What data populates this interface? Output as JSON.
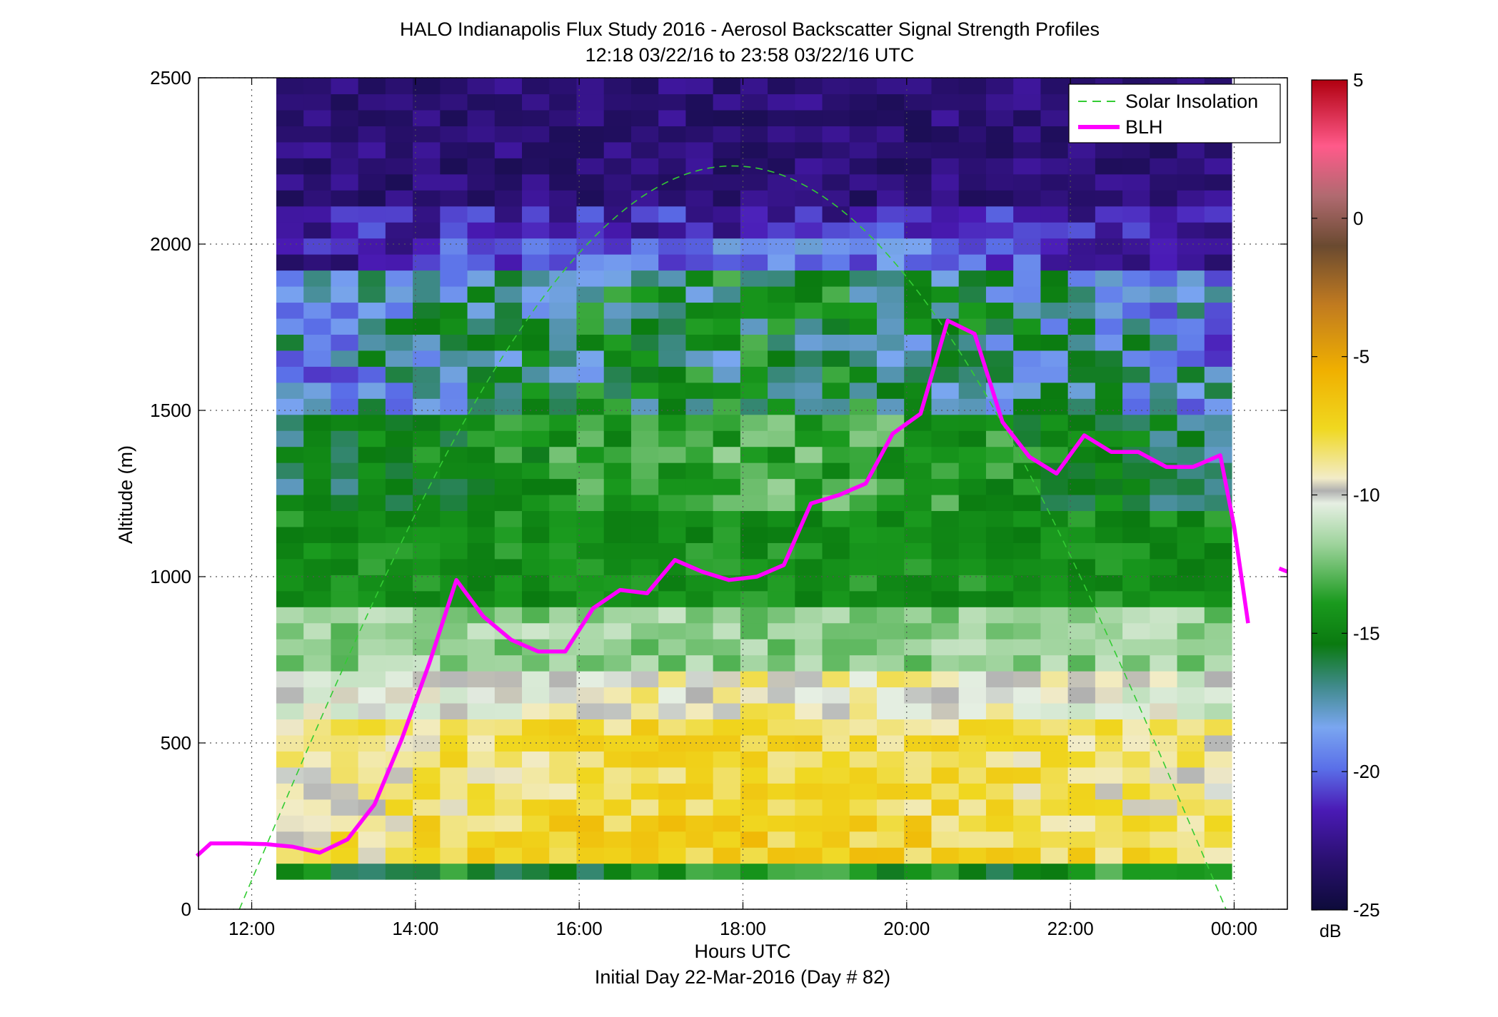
{
  "chart_data": {
    "type": "heatmap",
    "title": "HALO Indianapolis Flux Study 2016 - Aerosol Backscatter Signal Strength Profiles",
    "subtitle": "12:18 03/22/16 to 23:58 03/22/16  UTC",
    "xlabel": "Hours UTC",
    "xlabel2": "Initial Day 22-Mar-2016 (Day # 82)",
    "ylabel": "Altitude (m)",
    "xlim_hours": [
      11.35,
      24.65
    ],
    "ylim": [
      0,
      2500
    ],
    "x_ticks": [
      {
        "value": 12,
        "label": "12:00"
      },
      {
        "value": 14,
        "label": "14:00"
      },
      {
        "value": 16,
        "label": "16:00"
      },
      {
        "value": 18,
        "label": "18:00"
      },
      {
        "value": 20,
        "label": "20:00"
      },
      {
        "value": 22,
        "label": "22:00"
      },
      {
        "value": 24,
        "label": "00:00"
      }
    ],
    "y_ticks": [
      {
        "value": 0,
        "label": "0"
      },
      {
        "value": 500,
        "label": "500"
      },
      {
        "value": 1000,
        "label": "1000"
      },
      {
        "value": 1500,
        "label": "1500"
      },
      {
        "value": 2000,
        "label": "2000"
      },
      {
        "value": 2500,
        "label": "2500"
      }
    ],
    "grid": true,
    "legend_position": "top-right",
    "legend": [
      {
        "name": "Solar Insolation",
        "color": "#33cc33",
        "style": "dashed"
      },
      {
        "name": "BLH",
        "color": "#ff00ff",
        "style": "solid"
      }
    ],
    "colorbar": {
      "unit": "dB",
      "range": [
        -25,
        5
      ],
      "ticks": [
        {
          "value": 5,
          "label": "5"
        },
        {
          "value": 0,
          "label": "0"
        },
        {
          "value": -5,
          "label": "-5"
        },
        {
          "value": -10,
          "label": "-10"
        },
        {
          "value": -15,
          "label": "-15"
        },
        {
          "value": -20,
          "label": "-20"
        },
        {
          "value": -25,
          "label": "-25"
        }
      ]
    },
    "heatmap_x_range_hours": [
      12.3,
      23.97
    ],
    "heatmap_y_range_m": [
      90,
      2500
    ],
    "profile_layers": [
      {
        "alt_max": 140,
        "db": -15.5,
        "variation": 2.0
      },
      {
        "alt_max": 300,
        "db": -8.5,
        "variation": 1.5
      },
      {
        "alt_max": 550,
        "db": -9.0,
        "variation": 1.2
      },
      {
        "alt_max": 700,
        "db": -10.5,
        "variation": 1.2
      },
      {
        "alt_max": 900,
        "db": -12.5,
        "variation": 1.2
      },
      {
        "alt_max": 1200,
        "db": -15.0,
        "variation": 1.0
      },
      {
        "alt_max": 1500,
        "db": -16.0,
        "variation": 1.5
      },
      {
        "alt_max": 1900,
        "db": -18.0,
        "variation": 2.5
      },
      {
        "alt_max": 2100,
        "db": -21.5,
        "variation": 1.5
      },
      {
        "alt_max": 2500,
        "db": -23.0,
        "variation": 1.0
      }
    ],
    "blh": {
      "name": "BLH",
      "x_hours": [
        11.33,
        11.5,
        11.85,
        12.17,
        12.5,
        12.83,
        13.17,
        13.5,
        13.83,
        14.17,
        14.5,
        14.83,
        15.17,
        15.5,
        15.83,
        16.17,
        16.5,
        16.83,
        17.17,
        17.5,
        17.83,
        18.17,
        18.5,
        18.83,
        19.17,
        19.5,
        19.83,
        20.17,
        20.5,
        20.83,
        21.17,
        21.5,
        21.83,
        22.17,
        22.5,
        22.83,
        23.17,
        23.5,
        23.83,
        24.0,
        24.17
      ],
      "y_m": [
        160,
        198,
        198,
        196,
        188,
        170,
        210,
        315,
        510,
        740,
        990,
        880,
        810,
        775,
        775,
        905,
        960,
        950,
        1050,
        1015,
        990,
        1000,
        1035,
        1220,
        1245,
        1280,
        1430,
        1490,
        1770,
        1730,
        1465,
        1360,
        1310,
        1425,
        1375,
        1375,
        1330,
        1330,
        1365,
        1150,
        860
      ],
      "extra_segment": {
        "x_hours": [
          24.55,
          24.65
        ],
        "y_m": [
          1025,
          1015
        ]
      }
    },
    "solar_insolation": {
      "name": "Solar Insolation",
      "peak_hour": 17.85,
      "peak_alt": 2235,
      "zero_hours": [
        11.85,
        23.9
      ]
    }
  }
}
